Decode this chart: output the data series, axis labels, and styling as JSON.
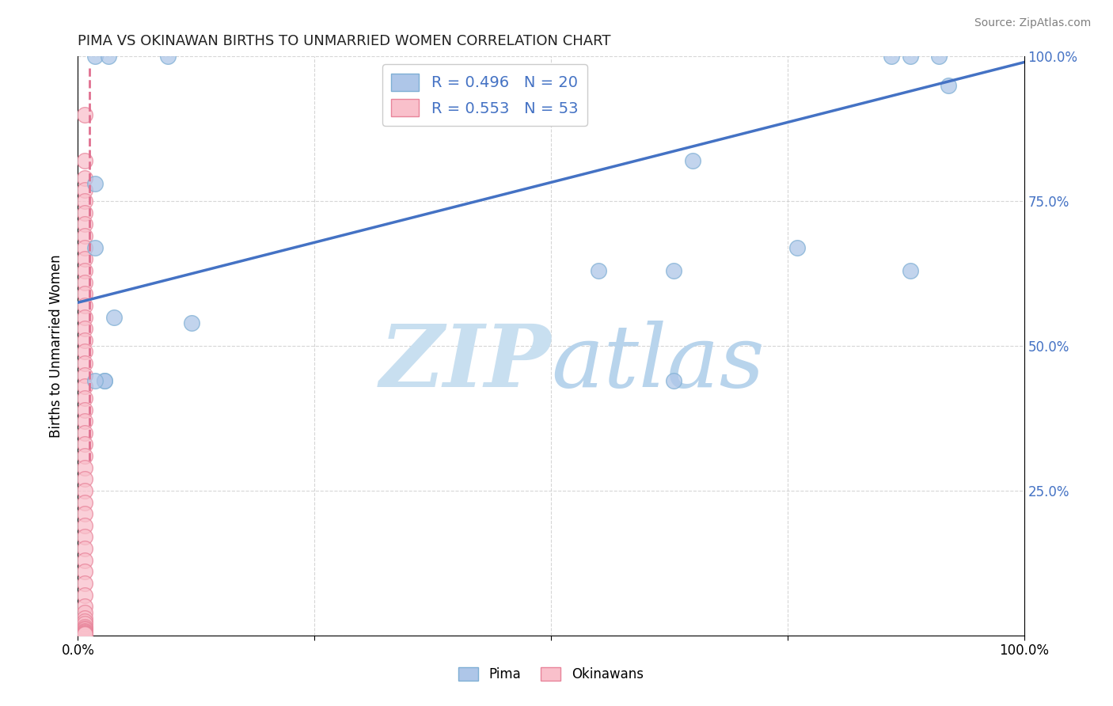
{
  "title": "PIMA VS OKINAWAN BIRTHS TO UNMARRIED WOMEN CORRELATION CHART",
  "source": "Source: ZipAtlas.com",
  "ylabel": "Births to Unmarried Women",
  "xlim": [
    0,
    1
  ],
  "ylim": [
    0,
    1
  ],
  "pima_color": "#aec6e8",
  "pima_edge_color": "#7fafd4",
  "okinawan_color": "#f9c0cb",
  "okinawan_edge_color": "#e8849a",
  "pima_R": 0.496,
  "pima_N": 20,
  "okinawan_R": 0.553,
  "okinawan_N": 53,
  "pima_line_color": "#4472c4",
  "okinawan_line_color": "#e07090",
  "watermark_zip": "ZIP",
  "watermark_atlas": "atlas",
  "watermark_color_zip": "#ccdff0",
  "watermark_color_atlas": "#c0d8ee",
  "legend_label_pima": "Pima",
  "legend_label_okinawan": "Okinawans",
  "pima_line_x0": 0.0,
  "pima_line_y0": 0.575,
  "pima_line_x1": 1.0,
  "pima_line_y1": 0.99,
  "ok_line_x0": 0.012,
  "ok_line_y0": 0.98,
  "ok_line_x1": 0.012,
  "ok_line_y1": 0.3,
  "pima_x": [
    0.018,
    0.032,
    0.095,
    0.018,
    0.018,
    0.038,
    0.12,
    0.028,
    0.028,
    0.018,
    0.65,
    0.76,
    0.86,
    0.88,
    0.91,
    0.92,
    0.88,
    0.55,
    0.63,
    0.63
  ],
  "pima_y": [
    1.0,
    1.0,
    1.0,
    0.78,
    0.67,
    0.55,
    0.54,
    0.44,
    0.44,
    0.44,
    0.82,
    0.67,
    1.0,
    1.0,
    1.0,
    0.95,
    0.63,
    0.63,
    0.63,
    0.44
  ],
  "okinawan_x": [
    0.007,
    0.007,
    0.007,
    0.007,
    0.007,
    0.007,
    0.007,
    0.007,
    0.007,
    0.007,
    0.007,
    0.007,
    0.007,
    0.007,
    0.007,
    0.007,
    0.007,
    0.007,
    0.007,
    0.007,
    0.007,
    0.007,
    0.007,
    0.007,
    0.007,
    0.007,
    0.007,
    0.007,
    0.007,
    0.007,
    0.007,
    0.007,
    0.007,
    0.007,
    0.007,
    0.007,
    0.007,
    0.007,
    0.007,
    0.007,
    0.007,
    0.007,
    0.007,
    0.007,
    0.007,
    0.007,
    0.007,
    0.007,
    0.007,
    0.007,
    0.007,
    0.007,
    0.007
  ],
  "okinawan_y": [
    0.9,
    0.82,
    0.79,
    0.77,
    0.75,
    0.73,
    0.71,
    0.69,
    0.67,
    0.65,
    0.63,
    0.61,
    0.59,
    0.57,
    0.55,
    0.53,
    0.51,
    0.49,
    0.47,
    0.45,
    0.43,
    0.41,
    0.39,
    0.37,
    0.35,
    0.33,
    0.31,
    0.29,
    0.27,
    0.25,
    0.23,
    0.21,
    0.19,
    0.17,
    0.15,
    0.13,
    0.11,
    0.09,
    0.07,
    0.05,
    0.04,
    0.03,
    0.025,
    0.02,
    0.015,
    0.012,
    0.01,
    0.008,
    0.006,
    0.005,
    0.004,
    0.003,
    0.002
  ],
  "background_color": "#ffffff",
  "grid_color": "#cccccc"
}
